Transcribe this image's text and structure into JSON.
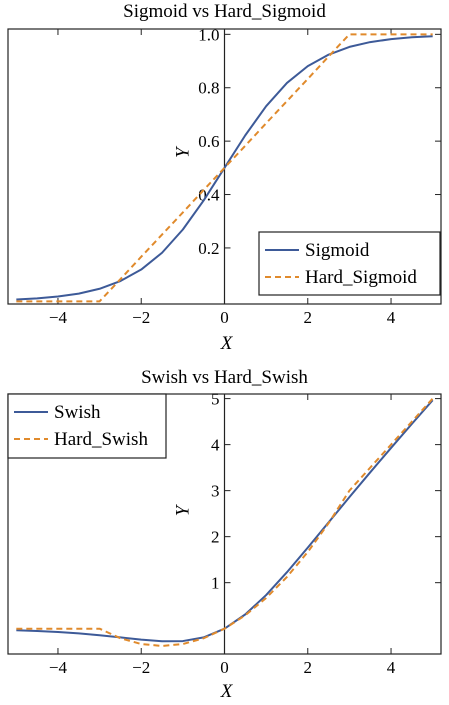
{
  "chart_data": [
    {
      "type": "line",
      "title": "Sigmoid vs Hard_Sigmoid",
      "xlabel": "X",
      "ylabel": "Y",
      "xlim": [
        -5.2,
        5.2
      ],
      "ylim": [
        -0.01,
        1.02
      ],
      "xticks": [
        -4,
        -2,
        0,
        2,
        4
      ],
      "xtick_labels": [
        "−4",
        "−2",
        "0",
        "2",
        "4"
      ],
      "yticks": [
        0.2,
        0.4,
        0.6,
        0.8,
        1.0
      ],
      "ytick_labels": [
        "0.2",
        "0.4",
        "0.6",
        "0.8",
        "1.0"
      ],
      "grid": false,
      "legend": "bottom-right",
      "x": [
        -5,
        -4.5,
        -4,
        -3.5,
        -3,
        -2.5,
        -2,
        -1.5,
        -1,
        -0.5,
        0,
        0.5,
        1,
        1.5,
        2,
        2.5,
        3,
        3.5,
        4,
        4.5,
        5
      ],
      "series": [
        {
          "name": "Sigmoid",
          "style": "solid",
          "color": "#3d5a98",
          "values": [
            0.007,
            0.011,
            0.018,
            0.029,
            0.047,
            0.076,
            0.119,
            0.182,
            0.269,
            0.378,
            0.5,
            0.622,
            0.731,
            0.818,
            0.881,
            0.924,
            0.953,
            0.971,
            0.982,
            0.989,
            0.993
          ]
        },
        {
          "name": "Hard_Sigmoid",
          "style": "dashed",
          "color": "#e08a2c",
          "values": [
            0,
            0,
            0,
            0,
            0,
            0.083,
            0.167,
            0.25,
            0.333,
            0.417,
            0.5,
            0.583,
            0.667,
            0.75,
            0.833,
            0.917,
            1.0,
            1.0,
            1.0,
            1.0,
            1.0
          ]
        }
      ]
    },
    {
      "type": "line",
      "title": "Swish vs Hard_Swish",
      "xlabel": "X",
      "ylabel": "Y",
      "xlim": [
        -5.2,
        5.2
      ],
      "ylim": [
        -0.55,
        5.1
      ],
      "xticks": [
        -4,
        -2,
        0,
        2,
        4
      ],
      "xtick_labels": [
        "−4",
        "−2",
        "0",
        "2",
        "4"
      ],
      "yticks": [
        1,
        2,
        3,
        4,
        5
      ],
      "ytick_labels": [
        "1",
        "2",
        "3",
        "4",
        "5"
      ],
      "grid": false,
      "legend": "top-left",
      "x": [
        -5,
        -4.5,
        -4,
        -3.5,
        -3,
        -2.5,
        -2,
        -1.5,
        -1,
        -0.5,
        0,
        0.5,
        1,
        1.5,
        2,
        2.5,
        3,
        3.5,
        4,
        4.5,
        5
      ],
      "series": [
        {
          "name": "Swish",
          "style": "solid",
          "color": "#3d5a98",
          "values": [
            -0.033,
            -0.05,
            -0.072,
            -0.103,
            -0.142,
            -0.19,
            -0.238,
            -0.273,
            -0.269,
            -0.189,
            0,
            0.311,
            0.731,
            1.227,
            1.762,
            2.31,
            2.858,
            3.398,
            3.928,
            4.451,
            4.966
          ]
        },
        {
          "name": "Hard_Swish",
          "style": "dashed",
          "color": "#e08a2c",
          "values": [
            0,
            0,
            0,
            0,
            0,
            -0.208,
            -0.333,
            -0.375,
            -0.333,
            -0.208,
            0,
            0.292,
            0.667,
            1.125,
            1.667,
            2.292,
            3.0,
            3.5,
            4.0,
            4.5,
            5.0
          ]
        }
      ]
    }
  ]
}
